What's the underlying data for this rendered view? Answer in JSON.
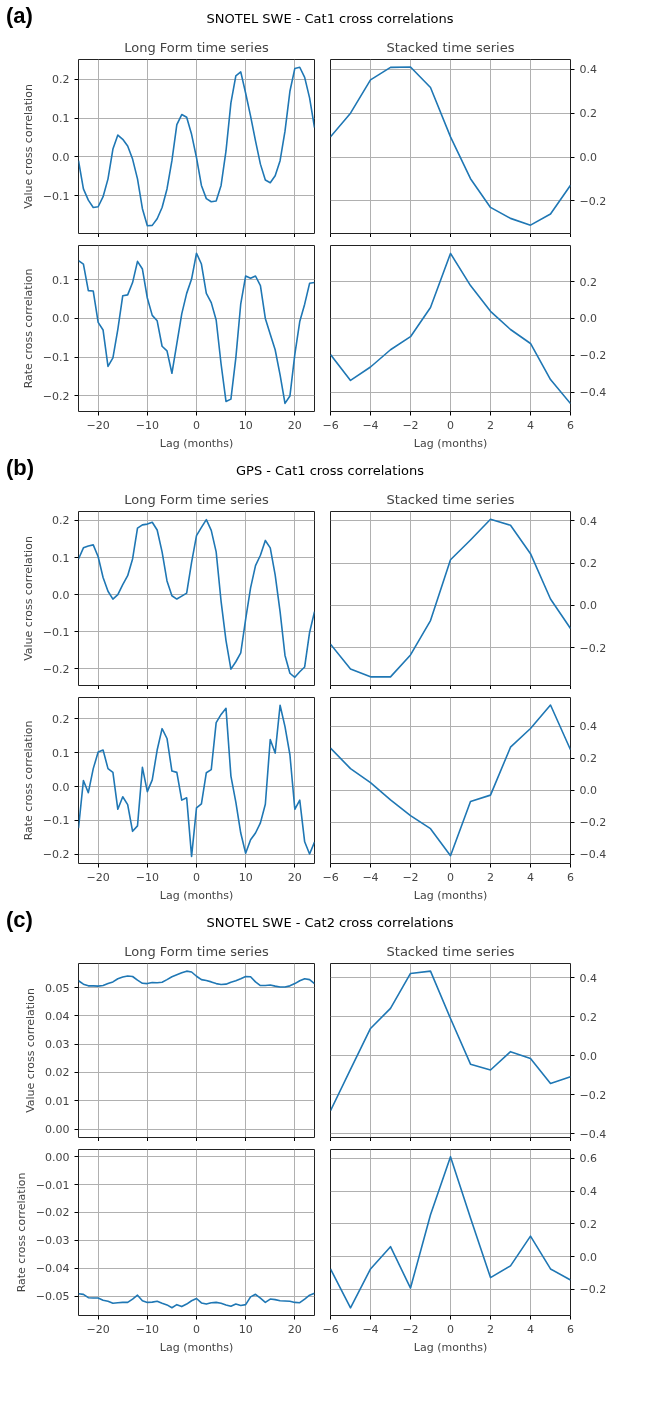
{
  "chart_data": [
    {
      "type": "line",
      "title": "SNOTEL SWE - Cat1 cross correlations",
      "annotations": [
        "(a)"
      ],
      "subtitle": "Long Form time series",
      "ylabel": "Value cross correlation",
      "color": "#1f77b4",
      "grid": true,
      "tick_labels": "y",
      "xlim": [
        -24,
        24
      ],
      "ylim": [
        -0.198,
        0.251
      ],
      "xticks": [
        {
          "value": -20,
          "label": null
        },
        {
          "value": -10,
          "label": null
        },
        {
          "value": 0,
          "label": null
        },
        {
          "value": 10,
          "label": null
        },
        {
          "value": 20,
          "label": null
        }
      ],
      "yticks": [
        {
          "value": -0.1,
          "label": "−0.1"
        },
        {
          "value": 0,
          "label": "0.0"
        },
        0.1,
        0.2
      ],
      "x": [
        -24,
        -23,
        -22,
        -21,
        -20,
        -19,
        -18,
        -17,
        -16,
        -15,
        -14,
        -13,
        -12,
        -11,
        -10,
        -9,
        -8,
        -7,
        -6,
        -5,
        -4,
        -3,
        -2,
        -1,
        0,
        1,
        2,
        3,
        4,
        5,
        6,
        7,
        8,
        9,
        10,
        11,
        12,
        13,
        14,
        15,
        16,
        17,
        18,
        19,
        20,
        21,
        22,
        23,
        24
      ],
      "values": [
        -0.01,
        -0.083,
        -0.112,
        -0.131,
        -0.129,
        -0.103,
        -0.057,
        0.02,
        0.056,
        0.045,
        0.028,
        -0.006,
        -0.057,
        -0.134,
        -0.178,
        -0.177,
        -0.16,
        -0.131,
        -0.083,
        -0.01,
        0.083,
        0.109,
        0.102,
        0.058,
        -0.002,
        -0.074,
        -0.108,
        -0.116,
        -0.114,
        -0.074,
        0.015,
        0.139,
        0.209,
        0.219,
        0.164,
        0.105,
        0.041,
        -0.019,
        -0.06,
        -0.067,
        -0.049,
        -0.01,
        0.066,
        0.169,
        0.228,
        0.231,
        0.205,
        0.152,
        0.075
      ]
    },
    {
      "type": "line",
      "subtitle": "Stacked time series",
      "color": "#1f77b4",
      "grid": true,
      "tick_labels": "y",
      "xlim": [
        -6,
        6
      ],
      "ylim": [
        -0.349,
        0.445
      ],
      "xticks": [
        {
          "value": -6,
          "label": null
        },
        {
          "value": -4,
          "label": null
        },
        {
          "value": -2,
          "label": null
        },
        {
          "value": 0,
          "label": null
        },
        {
          "value": 2,
          "label": null
        },
        {
          "value": 4,
          "label": null
        },
        {
          "value": 6,
          "label": null
        }
      ],
      "yticks": [
        {
          "value": -0.2,
          "label": "−0.2"
        },
        {
          "value": 0,
          "label": "0.0"
        },
        0.2,
        0.4
      ],
      "x": [
        -6,
        -5,
        -4,
        -3,
        -2,
        -1,
        0,
        1,
        2,
        3,
        4,
        5,
        6
      ],
      "values": [
        0.092,
        0.2,
        0.352,
        0.409,
        0.411,
        0.317,
        0.092,
        -0.099,
        -0.23,
        -0.28,
        -0.311,
        -0.26,
        -0.129
      ]
    },
    {
      "type": "line",
      "ylabel": "Rate cross correlation",
      "xlabel": "Lag (months)",
      "color": "#1f77b4",
      "grid": true,
      "xlim": [
        -24,
        24
      ],
      "ylim": [
        -0.241,
        0.189
      ],
      "xticks": [
        {
          "value": -20,
          "label": "−20"
        },
        {
          "value": -10,
          "label": "−10"
        },
        0,
        10,
        20
      ],
      "yticks": [
        {
          "value": -0.2,
          "label": "−0.2"
        },
        {
          "value": -0.1,
          "label": "−0.1"
        },
        {
          "value": 0,
          "label": "0.0"
        },
        0.1
      ],
      "x": [
        -24,
        -23,
        -22,
        -21,
        -20,
        -19,
        -18,
        -17,
        -16,
        -15,
        -14,
        -13,
        -12,
        -11,
        -10,
        -9,
        -8,
        -7,
        -6,
        -5,
        -4,
        -3,
        -2,
        -1,
        0,
        1,
        2,
        3,
        4,
        5,
        6,
        7,
        8,
        9,
        10,
        11,
        12,
        13,
        14,
        15,
        16,
        17,
        18,
        19,
        20,
        21,
        22,
        23,
        24
      ],
      "values": [
        0.15,
        0.141,
        0.072,
        0.071,
        -0.01,
        -0.03,
        -0.124,
        -0.102,
        -0.028,
        0.059,
        0.061,
        0.093,
        0.148,
        0.128,
        0.053,
        0.008,
        -0.006,
        -0.072,
        -0.084,
        -0.142,
        -0.065,
        0.012,
        0.065,
        0.102,
        0.169,
        0.141,
        0.065,
        0.041,
        -0.004,
        -0.118,
        -0.215,
        -0.209,
        -0.102,
        0.038,
        0.11,
        0.104,
        0.11,
        0.085,
        0,
        -0.041,
        -0.081,
        -0.146,
        -0.22,
        -0.201,
        -0.093,
        -0.008,
        0.037,
        0.091,
        0.093
      ]
    },
    {
      "type": "line",
      "xlabel": "Lag (months)",
      "color": "#1f77b4",
      "grid": true,
      "xlim": [
        -6,
        6
      ],
      "ylim": [
        -0.506,
        0.397
      ],
      "xticks": [
        {
          "value": -6,
          "label": "−6"
        },
        {
          "value": -4,
          "label": "−4"
        },
        {
          "value": -2,
          "label": "−2"
        },
        0,
        2,
        4,
        6
      ],
      "yticks": [
        {
          "value": -0.4,
          "label": "−0.4"
        },
        {
          "value": -0.2,
          "label": "−0.2"
        },
        {
          "value": 0,
          "label": "0.0"
        },
        0.2
      ],
      "x": [
        -6,
        -5,
        -4,
        -3,
        -2,
        -1,
        0,
        1,
        2,
        3,
        4,
        5,
        6
      ],
      "values": [
        -0.196,
        -0.337,
        -0.264,
        -0.17,
        -0.099,
        0.06,
        0.354,
        0.179,
        0.039,
        -0.06,
        -0.136,
        -0.332,
        -0.463
      ]
    },
    {
      "type": "line",
      "title": "GPS - Cat1 cross correlations",
      "annotations": [
        "(b)"
      ],
      "subtitle": "Long Form time series",
      "ylabel": "Value cross correlation",
      "color": "#1f77b4",
      "grid": true,
      "tick_labels": "y",
      "xlim": [
        -24,
        24
      ],
      "ylim": [
        -0.245,
        0.224
      ],
      "xticks": [
        {
          "value": -20,
          "label": null
        },
        {
          "value": -10,
          "label": null
        },
        {
          "value": 0,
          "label": null
        },
        {
          "value": 10,
          "label": null
        },
        {
          "value": 20,
          "label": null
        }
      ],
      "yticks": [
        {
          "value": -0.2,
          "label": "−0.2"
        },
        {
          "value": -0.1,
          "label": "−0.1"
        },
        {
          "value": 0,
          "label": "0.0"
        },
        0.1,
        0.2
      ],
      "x": [
        -24,
        -23,
        -22,
        -21,
        -20,
        -19,
        -18,
        -17,
        -16,
        -15,
        -14,
        -13,
        -12,
        -11,
        -10,
        -9,
        -8,
        -7,
        -6,
        -5,
        -4,
        -3,
        -2,
        -1,
        0,
        1,
        2,
        3,
        4,
        5,
        6,
        7,
        8,
        9,
        10,
        11,
        12,
        13,
        14,
        15,
        16,
        17,
        18,
        19,
        20,
        21,
        22,
        23,
        24
      ],
      "values": [
        0.096,
        0.126,
        0.131,
        0.134,
        0.102,
        0.046,
        0.009,
        -0.012,
        0,
        0.027,
        0.051,
        0.096,
        0.179,
        0.188,
        0.19,
        0.195,
        0.174,
        0.115,
        0.037,
        -0.003,
        -0.012,
        -0.004,
        0.004,
        0.087,
        0.159,
        0.181,
        0.202,
        0.173,
        0.115,
        -0.018,
        -0.124,
        -0.201,
        -0.181,
        -0.157,
        -0.066,
        0.018,
        0.078,
        0.106,
        0.146,
        0.126,
        0.053,
        -0.046,
        -0.164,
        -0.212,
        -0.223,
        -0.208,
        -0.195,
        -0.102,
        -0.046
      ]
    },
    {
      "type": "line",
      "subtitle": "Stacked time series",
      "color": "#1f77b4",
      "grid": true,
      "tick_labels": "y",
      "xlim": [
        -6,
        6
      ],
      "ylim": [
        -0.38,
        0.445
      ],
      "xticks": [
        {
          "value": -6,
          "label": null
        },
        {
          "value": -4,
          "label": null
        },
        {
          "value": -2,
          "label": null
        },
        {
          "value": 0,
          "label": null
        },
        {
          "value": 2,
          "label": null
        },
        {
          "value": 4,
          "label": null
        },
        {
          "value": 6,
          "label": null
        }
      ],
      "yticks": [
        {
          "value": -0.2,
          "label": "−0.2"
        },
        {
          "value": 0,
          "label": "0.0"
        },
        0.2,
        0.4
      ],
      "x": [
        -6,
        -5,
        -4,
        -3,
        -2,
        -1,
        0,
        1,
        2,
        3,
        4,
        5,
        6
      ],
      "values": [
        -0.184,
        -0.302,
        -0.339,
        -0.339,
        -0.235,
        -0.072,
        0.216,
        0.31,
        0.408,
        0.38,
        0.245,
        0.03,
        -0.11
      ]
    },
    {
      "type": "line",
      "ylabel": "Rate cross correlation",
      "xlabel": "Lag (months)",
      "color": "#1f77b4",
      "grid": true,
      "xlim": [
        -24,
        24
      ],
      "ylim": [
        -0.227,
        0.263
      ],
      "xticks": [
        {
          "value": -20,
          "label": "−20"
        },
        {
          "value": -10,
          "label": "−10"
        },
        0,
        10,
        20
      ],
      "yticks": [
        {
          "value": -0.2,
          "label": "−0.2"
        },
        {
          "value": -0.1,
          "label": "−0.1"
        },
        {
          "value": 0,
          "label": "0.0"
        },
        0.1,
        0.2
      ],
      "x": [
        -24,
        -23,
        -22,
        -21,
        -20,
        -19,
        -18,
        -17,
        -16,
        -15,
        -14,
        -13,
        -12,
        -11,
        -10,
        -9,
        -8,
        -7,
        -6,
        -5,
        -4,
        -3,
        -2,
        -1,
        0,
        1,
        2,
        3,
        4,
        5,
        6,
        7,
        8,
        9,
        10,
        11,
        12,
        13,
        14,
        15,
        16,
        17,
        18,
        19,
        20,
        21,
        22,
        23,
        24
      ],
      "values": [
        -0.123,
        0.018,
        -0.018,
        0.053,
        0.102,
        0.108,
        0.053,
        0.042,
        -0.067,
        -0.03,
        -0.053,
        -0.132,
        -0.116,
        0.057,
        -0.015,
        0.02,
        0.108,
        0.171,
        0.142,
        0.046,
        0.042,
        -0.04,
        -0.033,
        -0.206,
        -0.063,
        -0.051,
        0.041,
        0.05,
        0.189,
        0.213,
        0.231,
        0.031,
        -0.046,
        -0.137,
        -0.197,
        -0.157,
        -0.137,
        -0.107,
        -0.052,
        0.139,
        0.099,
        0.24,
        0.177,
        0.094,
        -0.067,
        -0.04,
        -0.163,
        -0.199,
        -0.164
      ]
    },
    {
      "type": "line",
      "xlabel": "Lag (months)",
      "color": "#1f77b4",
      "grid": true,
      "xlim": [
        -6,
        6
      ],
      "ylim": [
        -0.459,
        0.58
      ],
      "xticks": [
        {
          "value": -6,
          "label": "−6"
        },
        {
          "value": -4,
          "label": "−4"
        },
        {
          "value": -2,
          "label": "−2"
        },
        0,
        2,
        4,
        6
      ],
      "yticks": [
        {
          "value": -0.4,
          "label": "−0.4"
        },
        {
          "value": -0.2,
          "label": "−0.2"
        },
        {
          "value": 0,
          "label": "0.0"
        },
        0.2,
        0.4
      ],
      "x": [
        -6,
        -5,
        -4,
        -3,
        -2,
        -1,
        0,
        1,
        2,
        3,
        4,
        5,
        6
      ],
      "values": [
        0.263,
        0.135,
        0.047,
        -0.061,
        -0.159,
        -0.241,
        -0.41,
        -0.071,
        -0.031,
        0.269,
        0.386,
        0.533,
        0.253
      ]
    },
    {
      "type": "line",
      "title": "SNOTEL SWE - Cat2 cross correlations",
      "annotations": [
        "(c)"
      ],
      "subtitle": "Long Form time series",
      "ylabel": "Value cross correlation",
      "color": "#1f77b4",
      "grid": true,
      "tick_labels": "y",
      "xlim": [
        -24,
        24
      ],
      "ylim": [
        -0.003,
        0.0585
      ],
      "xticks": [
        {
          "value": -20,
          "label": null
        },
        {
          "value": -10,
          "label": null
        },
        {
          "value": 0,
          "label": null
        },
        {
          "value": 10,
          "label": null
        },
        {
          "value": 20,
          "label": null
        }
      ],
      "yticks": [
        {
          "value": 0,
          "label": "0.00"
        },
        0.01,
        0.02,
        0.03,
        0.04,
        0.05
      ],
      "x": [
        -24,
        -23,
        -22,
        -21,
        -20,
        -19,
        -18,
        -17,
        -16,
        -15,
        -14,
        -13,
        -12,
        -11,
        -10,
        -9,
        -8,
        -7,
        -6,
        -5,
        -4,
        -3,
        -2,
        -1,
        0,
        1,
        2,
        3,
        4,
        5,
        6,
        7,
        8,
        9,
        10,
        11,
        12,
        13,
        14,
        15,
        16,
        17,
        18,
        19,
        20,
        21,
        22,
        23,
        24
      ],
      "values": [
        0.0524,
        0.0512,
        0.0506,
        0.0506,
        0.0505,
        0.0507,
        0.0514,
        0.052,
        0.0531,
        0.0537,
        0.0541,
        0.0539,
        0.0526,
        0.0515,
        0.0514,
        0.0518,
        0.0517,
        0.0519,
        0.0528,
        0.0538,
        0.0545,
        0.0552,
        0.0558,
        0.0555,
        0.054,
        0.0528,
        0.0525,
        0.052,
        0.0514,
        0.0511,
        0.0512,
        0.0519,
        0.0524,
        0.0531,
        0.0539,
        0.0538,
        0.052,
        0.0507,
        0.0507,
        0.0509,
        0.0505,
        0.0502,
        0.0502,
        0.0506,
        0.0514,
        0.0524,
        0.0531,
        0.0528,
        0.0514
      ]
    },
    {
      "type": "line",
      "subtitle": "Stacked time series",
      "color": "#1f77b4",
      "grid": true,
      "tick_labels": "y",
      "xlim": [
        -6,
        6
      ],
      "ylim": [
        -0.419,
        0.473
      ],
      "xticks": [
        {
          "value": -6,
          "label": null
        },
        {
          "value": -4,
          "label": null
        },
        {
          "value": -2,
          "label": null
        },
        {
          "value": 0,
          "label": null
        },
        {
          "value": 2,
          "label": null
        },
        {
          "value": 4,
          "label": null
        },
        {
          "value": 6,
          "label": null
        }
      ],
      "yticks": [
        {
          "value": -0.4,
          "label": "−0.4"
        },
        {
          "value": -0.2,
          "label": "−0.2"
        },
        {
          "value": 0,
          "label": "0.0"
        },
        0.2,
        0.4
      ],
      "x": [
        -6,
        -5,
        -4,
        -3,
        -2,
        -1,
        0,
        1,
        2,
        3,
        4,
        5,
        6
      ],
      "values": [
        -0.282,
        -0.07,
        0.14,
        0.243,
        0.422,
        0.434,
        0.191,
        -0.043,
        -0.073,
        0.021,
        -0.014,
        -0.142,
        -0.108
      ]
    },
    {
      "type": "line",
      "ylabel": "Rate cross correlation",
      "xlabel": "Lag (months)",
      "color": "#1f77b4",
      "grid": true,
      "xlim": [
        -24,
        24
      ],
      "ylim": [
        -0.057,
        0.0026
      ],
      "xticks": [
        {
          "value": -20,
          "label": "−20"
        },
        {
          "value": -10,
          "label": "−10"
        },
        0,
        10,
        20
      ],
      "yticks": [
        {
          "value": -0.05,
          "label": "−0.05"
        },
        {
          "value": -0.04,
          "label": "−0.04"
        },
        {
          "value": -0.03,
          "label": "−0.03"
        },
        {
          "value": -0.02,
          "label": "−0.02"
        },
        {
          "value": -0.01,
          "label": "−0.01"
        },
        {
          "value": 0,
          "label": "0.00"
        }
      ],
      "x": [
        -24,
        -23,
        -22,
        -21,
        -20,
        -19,
        -18,
        -17,
        -16,
        -15,
        -14,
        -13,
        -12,
        -11,
        -10,
        -9,
        -8,
        -7,
        -6,
        -5,
        -4,
        -3,
        -2,
        -1,
        0,
        1,
        2,
        3,
        4,
        5,
        6,
        7,
        8,
        9,
        10,
        11,
        12,
        13,
        14,
        15,
        16,
        17,
        18,
        19,
        20,
        21,
        22,
        23,
        24
      ],
      "values": [
        -0.0492,
        -0.0494,
        -0.0506,
        -0.0507,
        -0.0507,
        -0.0515,
        -0.0519,
        -0.0526,
        -0.0524,
        -0.0523,
        -0.0523,
        -0.0511,
        -0.0497,
        -0.0517,
        -0.0523,
        -0.0522,
        -0.0519,
        -0.0526,
        -0.0532,
        -0.0542,
        -0.0531,
        -0.0538,
        -0.0529,
        -0.0517,
        -0.0509,
        -0.0525,
        -0.0529,
        -0.0524,
        -0.0523,
        -0.0526,
        -0.0532,
        -0.0537,
        -0.0529,
        -0.0534,
        -0.0531,
        -0.0503,
        -0.0494,
        -0.0508,
        -0.0523,
        -0.0511,
        -0.0513,
        -0.0517,
        -0.0518,
        -0.0519,
        -0.0523,
        -0.0524,
        -0.0511,
        -0.0497,
        -0.049
      ]
    },
    {
      "type": "line",
      "xlabel": "Lag (months)",
      "color": "#1f77b4",
      "grid": true,
      "xlim": [
        -6,
        6
      ],
      "ylim": [
        -0.361,
        0.655
      ],
      "xticks": [
        {
          "value": -6,
          "label": "−6"
        },
        {
          "value": -4,
          "label": "−4"
        },
        {
          "value": -2,
          "label": "−2"
        },
        0,
        2,
        4,
        6
      ],
      "yticks": [
        {
          "value": -0.2,
          "label": "−0.2"
        },
        {
          "value": 0,
          "label": "0.0"
        },
        0.2,
        0.4,
        0.6
      ],
      "x": [
        -6,
        -5,
        -4,
        -3,
        -2,
        -1,
        0,
        1,
        2,
        3,
        4,
        5,
        6
      ],
      "values": [
        -0.076,
        -0.314,
        -0.076,
        0.06,
        -0.193,
        0.256,
        0.611,
        0.236,
        -0.129,
        -0.057,
        0.125,
        -0.076,
        -0.144
      ]
    }
  ]
}
